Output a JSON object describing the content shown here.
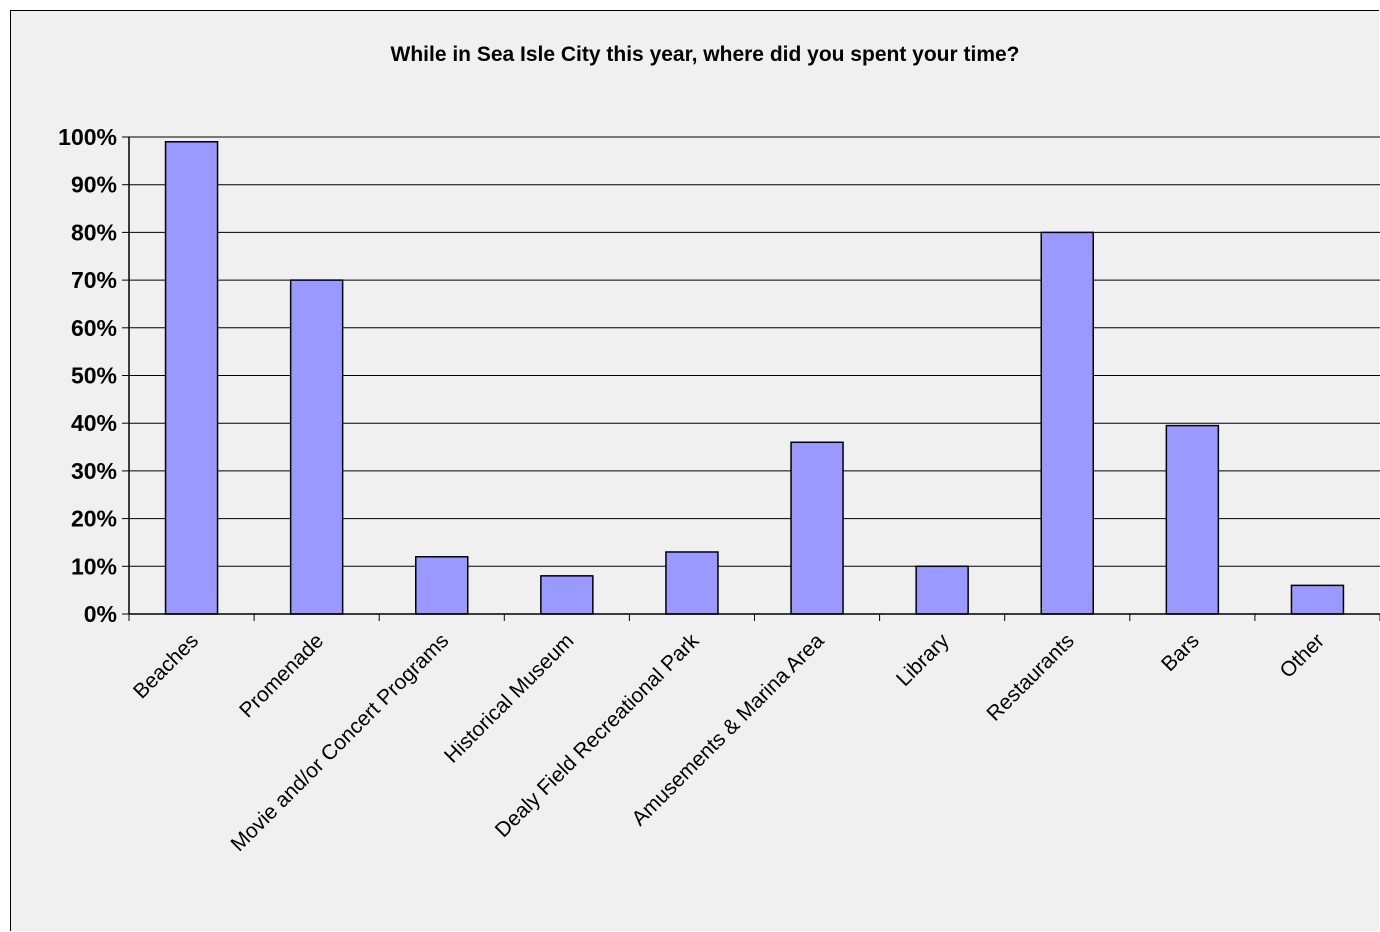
{
  "chart_data": {
    "type": "bar",
    "title": "While in Sea Isle City this year, where did you spent your time?",
    "categories": [
      "Beaches",
      "Promenade",
      "Movie and/or Concert Programs",
      "Historical Museum",
      "Dealy Field Recreational Park",
      "Amusements & Marina Area",
      "Library",
      "Restaurants",
      "Bars",
      "Other"
    ],
    "values": [
      99,
      70,
      12,
      8,
      13,
      36,
      10,
      80,
      39.5,
      6
    ],
    "y_tick_labels": [
      "0%",
      "10%",
      "20%",
      "30%",
      "40%",
      "50%",
      "60%",
      "70%",
      "80%",
      "90%",
      "100%"
    ],
    "ylim": [
      0,
      100
    ],
    "grid": true,
    "legend": "none",
    "bar_color": "#9999ff",
    "background_color": "#f0f0f0"
  }
}
